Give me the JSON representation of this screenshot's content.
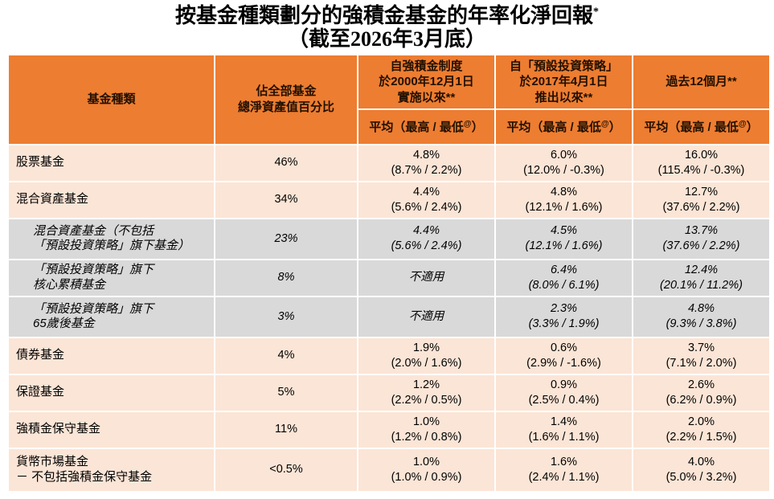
{
  "title": {
    "line1": "按基金種類劃分的強積金基金的年率化淨回報",
    "superscript": "*",
    "line2": "（截至2026年3月底）"
  },
  "colors": {
    "header_bg": "#ED7D31",
    "normal_row_bg": "#FBE5D6",
    "sub_row_bg": "#D9D9D9",
    "grid": "#FFFFFF"
  },
  "chart_data": {
    "type": "table",
    "title": "按基金種類劃分的強積金基金的年率化淨回報*（截至2026年3月底）",
    "columns": {
      "fund_type": "基金種類",
      "nav_share": "佔全部基金\n總淨資產值百分比",
      "since_mpf": "自強積金制度\n於2000年12月1日\n實施以來**",
      "since_dis": "自「預設投資策略」\n於2017年4月1日\n推出以來**",
      "past_12m": "過去12個月**",
      "sub_avg_label": "平均",
      "sub_range_prefix": "（最高 / 最低",
      "sub_range_sup": "@",
      "sub_range_suffix": "）"
    },
    "rows": [
      {
        "label": "股票基金",
        "share": "46%",
        "since_mpf": "4.8%\n(8.7% / 2.2%)",
        "since_dis": "6.0%\n(12.0% / -0.3%)",
        "past_12m": "16.0%\n(115.4% / -0.3%)"
      },
      {
        "label": "混合資產基金",
        "share": "34%",
        "since_mpf": "4.4%\n(5.6% / 2.4%)",
        "since_dis": "4.8%\n(12.1% / 1.6%)",
        "past_12m": "12.7%\n(37.6% / 2.2%)"
      },
      {
        "label": "混合資產基金（不包括\n「預設投資策略」旗下基金）",
        "share": "23%",
        "since_mpf": "4.4%\n(5.6% / 2.4%)",
        "since_dis": "4.5%\n(12.1% / 1.6%)",
        "past_12m": "13.7%\n(37.6% / 2.2%)"
      },
      {
        "label": "「預設投資策略」旗下\n核心累積基金",
        "share": "8%",
        "since_mpf": "不適用",
        "since_dis": "6.4%\n(8.0% / 6.1%)",
        "past_12m": "12.4%\n(20.1% / 11.2%)"
      },
      {
        "label": "「預設投資策略」旗下\n65歲後基金",
        "share": "3%",
        "since_mpf": "不適用",
        "since_dis": "2.3%\n(3.3% / 1.9%)",
        "past_12m": "4.8%\n(9.3% / 3.8%)"
      },
      {
        "label": "債券基金",
        "share": "4%",
        "since_mpf": "1.9%\n(2.0% / 1.6%)",
        "since_dis": "0.6%\n(2.9% / -1.6%)",
        "past_12m": "3.7%\n(7.1% / 2.0%)"
      },
      {
        "label": "保證基金",
        "share": "5%",
        "since_mpf": "1.2%\n(2.2% / 0.5%)",
        "since_dis": "0.9%\n(2.5% / 0.4%)",
        "past_12m": "2.6%\n(6.2% / 0.9%)"
      },
      {
        "label": "強積金保守基金",
        "share": "11%",
        "since_mpf": "1.0%\n(1.2% / 0.8%)",
        "since_dis": "1.4%\n(1.6% / 1.1%)",
        "past_12m": "2.0%\n(2.2% / 1.5%)"
      },
      {
        "label": "貨幣市場基金\n－ 不包括強積金保守基金",
        "share": "<0.5%",
        "since_mpf": "1.0%\n(1.0% / 0.9%)",
        "since_dis": "1.6%\n(2.4% / 1.1%)",
        "past_12m": "4.0%\n(5.0% / 3.2%)"
      }
    ]
  }
}
